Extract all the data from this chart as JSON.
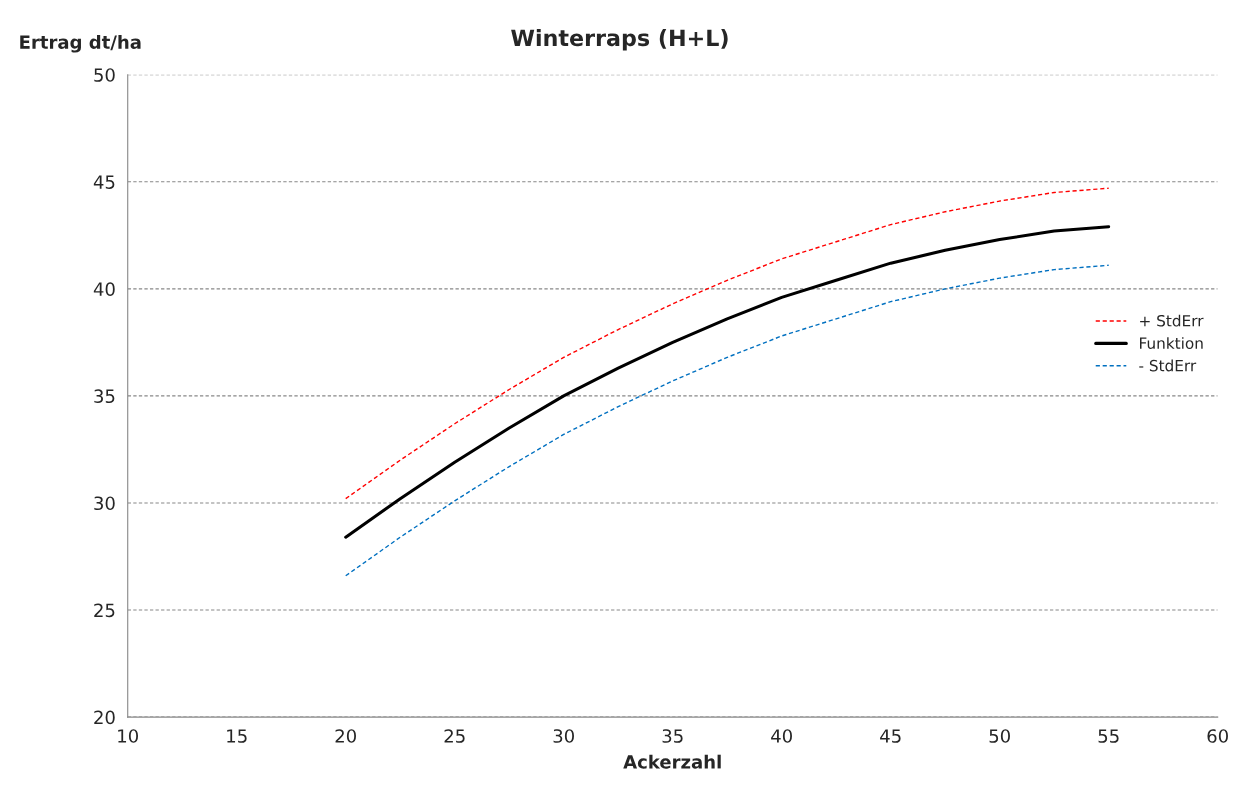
{
  "chart_data": {
    "type": "line",
    "title": "Winterraps (H+L)",
    "xlabel": "Ackerzahl",
    "ylabel": "Ertrag dt/ha",
    "x": [
      20,
      22.5,
      25,
      27.5,
      30,
      32.5,
      35,
      37.5,
      40,
      42.5,
      45,
      47.5,
      50,
      52.5,
      55
    ],
    "series": [
      {
        "name": "+ StdErr",
        "color": "#ff0000",
        "line_style": "dashed",
        "values": [
          30.2,
          32.0,
          33.7,
          35.3,
          36.8,
          38.1,
          39.3,
          40.4,
          41.4,
          42.2,
          43.0,
          43.6,
          44.1,
          44.5,
          44.7
        ]
      },
      {
        "name": "Funktion",
        "color": "#000000",
        "line_style": "solid",
        "values": [
          28.4,
          30.2,
          31.9,
          33.5,
          35.0,
          36.3,
          37.5,
          38.6,
          39.6,
          40.4,
          41.2,
          41.8,
          42.3,
          42.7,
          42.9
        ]
      },
      {
        "name": "- StdErr",
        "color": "#0070c0",
        "line_style": "dashed",
        "values": [
          26.6,
          28.4,
          30.1,
          31.7,
          33.2,
          34.5,
          35.7,
          36.8,
          37.8,
          38.6,
          39.4,
          40.0,
          40.5,
          40.9,
          41.1
        ]
      }
    ],
    "xlim": [
      10,
      60
    ],
    "xticks": [
      10,
      15,
      20,
      25,
      30,
      35,
      40,
      45,
      50,
      55,
      60
    ],
    "ylim": [
      20,
      50
    ],
    "yticks": [
      20,
      25,
      30,
      35,
      40,
      45,
      50
    ],
    "grid": "y",
    "legend": "right",
    "marker": "none"
  }
}
